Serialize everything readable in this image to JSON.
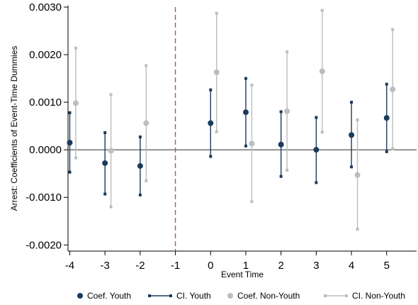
{
  "chart_data": {
    "type": "scatter",
    "xlabel": "Event Time",
    "ylabel": "Arrest: Coefficients of Event-Time Dummies",
    "x_ticks": [
      -4,
      -3,
      -2,
      -1,
      0,
      1,
      2,
      3,
      4,
      5
    ],
    "y_ticks": [
      -0.002,
      -0.001,
      0.0,
      0.001,
      0.002,
      0.003
    ],
    "y_tick_labels": [
      "-0.0020",
      "-0.0010",
      "0.0000",
      "0.0010",
      "0.0020",
      "0.0030"
    ],
    "xlim": [
      -4.05,
      5.85
    ],
    "ylim": [
      -0.00213,
      0.00303
    ],
    "zero_line": 0,
    "reference_line_x": -1,
    "grid": false,
    "legend_position": "bottom",
    "series": [
      {
        "name": "Coef. Youth",
        "color": "#1a3a5c",
        "x": [
          -4,
          -3,
          -2,
          0,
          1,
          2,
          3,
          4,
          5
        ],
        "y": [
          0.00015,
          -0.00028,
          -0.00034,
          0.00056,
          0.00079,
          0.00011,
          0.0,
          0.00031,
          0.00067
        ],
        "ci_low": [
          -0.00047,
          -0.00093,
          -0.00095,
          -0.00014,
          8e-05,
          -0.00056,
          -0.00069,
          -0.00036,
          -4e-05
        ],
        "ci_high": [
          0.00078,
          0.00036,
          0.00027,
          0.00126,
          0.0015,
          0.0008,
          0.00068,
          0.001,
          0.00138
        ]
      },
      {
        "name": "Coef. Non-Youth",
        "color": "#bdbdbd",
        "x": [
          -4,
          -3,
          -2,
          0,
          1,
          2,
          3,
          4,
          5
        ],
        "y": [
          0.00098,
          -2e-05,
          0.00056,
          0.00163,
          0.00013,
          0.00081,
          0.00165,
          -0.00053,
          0.00127
        ],
        "ci_low": [
          -0.00017,
          -0.0012,
          -0.00065,
          0.00038,
          -0.00109,
          -0.00043,
          0.00037,
          -0.00167,
          2e-05
        ],
        "ci_high": [
          0.00214,
          0.00116,
          0.00177,
          0.00287,
          0.00136,
          0.00206,
          0.00293,
          0.00063,
          0.00253
        ]
      }
    ],
    "legend": [
      {
        "label": "Coef. Youth",
        "kind": "point",
        "color": "#1a3a5c"
      },
      {
        "label": "CI. Youth",
        "kind": "ci",
        "color": "#1a3a5c"
      },
      {
        "label": "Coef. Non-Youth",
        "kind": "point",
        "color": "#bdbdbd"
      },
      {
        "label": "CI. Non-Youth",
        "kind": "ci",
        "color": "#bdbdbd"
      }
    ],
    "colors": {
      "zero_line": "#444444",
      "reference_line": "#c0504d"
    }
  }
}
